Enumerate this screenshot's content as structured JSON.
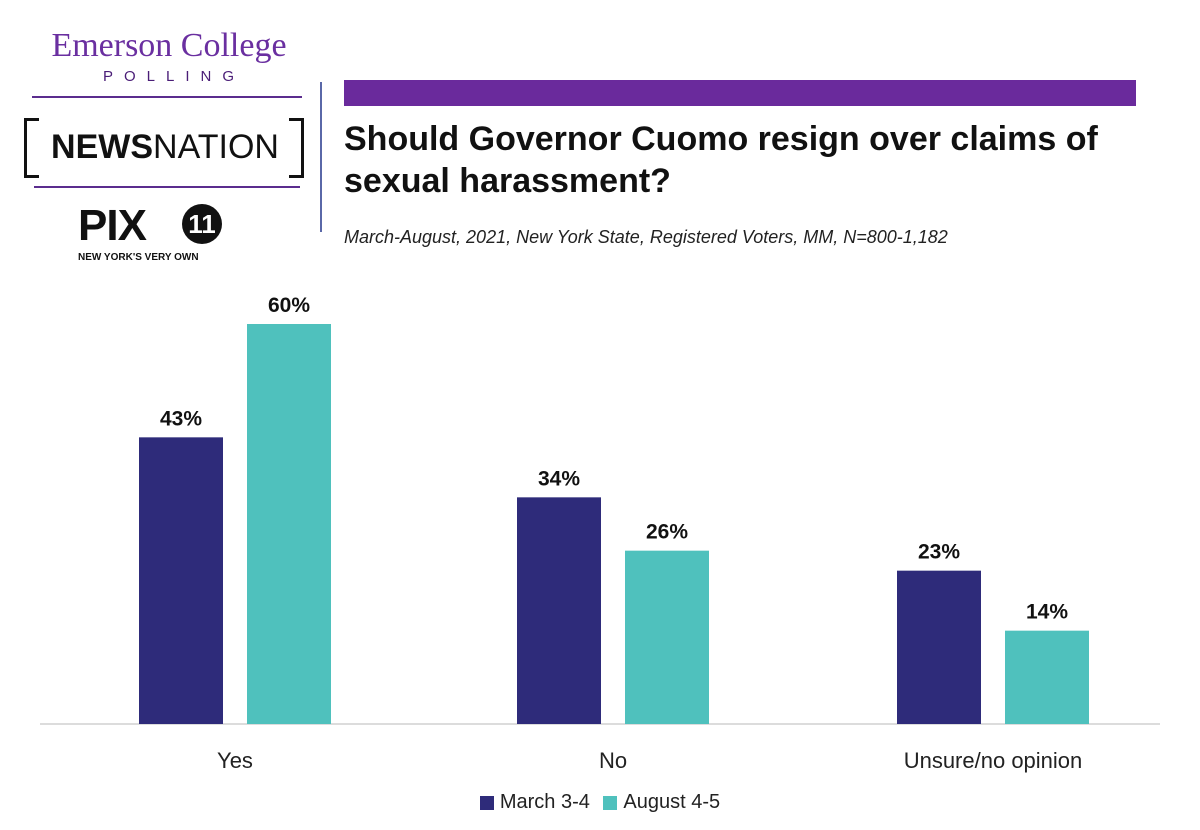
{
  "logos": {
    "emerson_name": "Emerson College",
    "emerson_sub": "POLLING",
    "newsnation_bold": "NEWS",
    "newsnation_rest": "NATION",
    "pix_text": "PIX",
    "pix_number": "11",
    "pix_tagline": "NEW YORK'S VERY OWN"
  },
  "colors": {
    "accent_bar": "#6a2a9c",
    "series1": "#2e2b7a",
    "series2": "#4fc1bd"
  },
  "chart_data": {
    "type": "bar",
    "title": "Should Governor Cuomo resign over claims of sexual harassment?",
    "subtitle": "March-August, 2021, New York State, Registered Voters, MM,  N=800-1,182",
    "categories": [
      "Yes",
      "No",
      "Unsure/no opinion"
    ],
    "series": [
      {
        "name": "March 3-4",
        "values": [
          43,
          34,
          23
        ],
        "labels": [
          "43%",
          "34%",
          "23%"
        ],
        "color": "#2e2b7a"
      },
      {
        "name": "August 4-5",
        "values": [
          60,
          26,
          14
        ],
        "labels": [
          "60%",
          "26%",
          "14%"
        ],
        "color": "#4fc1bd"
      }
    ],
    "ylim": [
      0,
      60
    ],
    "grid": false,
    "legend": "bottom"
  }
}
